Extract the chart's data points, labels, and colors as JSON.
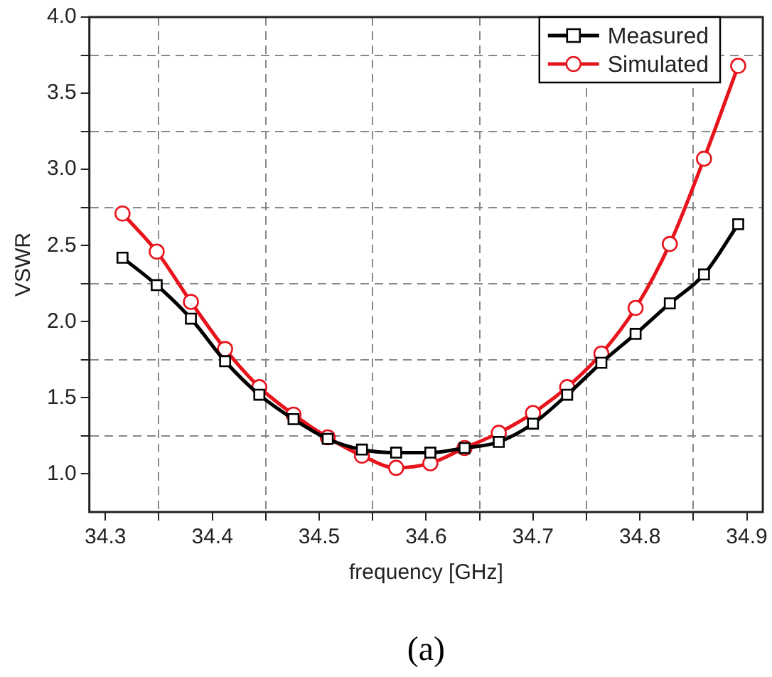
{
  "chart_data": {
    "type": "line",
    "xlabel": "frequency [GHz]",
    "ylabel": "VSWR",
    "annotations": [
      "(a)"
    ],
    "x": [
      34.316,
      34.348,
      34.38,
      34.412,
      34.444,
      34.476,
      34.508,
      34.54,
      34.572,
      34.604,
      34.636,
      34.668,
      34.7,
      34.732,
      34.764,
      34.796,
      34.828,
      34.86,
      34.892
    ],
    "series": [
      {
        "name": "Measured",
        "color": "#000000",
        "marker": "square",
        "values": [
          2.42,
          2.24,
          2.02,
          1.74,
          1.52,
          1.36,
          1.23,
          1.16,
          1.14,
          1.14,
          1.17,
          1.21,
          1.33,
          1.52,
          1.73,
          1.92,
          2.12,
          2.31,
          2.64
        ]
      },
      {
        "name": "Simulated",
        "color": "#e8141c",
        "marker": "circle",
        "values": [
          2.71,
          2.46,
          2.13,
          1.82,
          1.57,
          1.39,
          1.24,
          1.12,
          1.04,
          1.07,
          1.17,
          1.27,
          1.4,
          1.57,
          1.79,
          2.09,
          2.51,
          3.07,
          3.68
        ]
      }
    ],
    "xlim": [
      34.285,
      34.915
    ],
    "xticks": [
      34.3,
      {
        "value": 34.35,
        "label": null
      },
      34.4,
      {
        "value": 34.45,
        "label": null
      },
      34.5,
      {
        "value": 34.55,
        "label": null
      },
      34.6,
      {
        "value": 34.65,
        "label": null
      },
      34.7,
      {
        "value": 34.75,
        "label": null
      },
      34.8,
      {
        "value": 34.85,
        "label": null
      },
      34.9
    ],
    "ylim": [
      0.75,
      4.0
    ],
    "yticks": [
      {
        "value": 1.0,
        "label": "1.0"
      },
      {
        "value": 1.25,
        "label": null
      },
      {
        "value": 1.5,
        "label": "1.5"
      },
      {
        "value": 1.75,
        "label": null
      },
      {
        "value": 2.0,
        "label": "2.0"
      },
      {
        "value": 2.25,
        "label": null
      },
      {
        "value": 2.5,
        "label": "2.5"
      },
      {
        "value": 2.75,
        "label": null
      },
      {
        "value": 3.0,
        "label": "3.0"
      },
      {
        "value": 3.25,
        "label": null
      },
      {
        "value": 3.5,
        "label": "3.5"
      },
      {
        "value": 3.75,
        "label": null
      },
      {
        "value": 4.0,
        "label": "4.0"
      }
    ],
    "grid": true,
    "legend": "top right",
    "line_style": "solid"
  }
}
